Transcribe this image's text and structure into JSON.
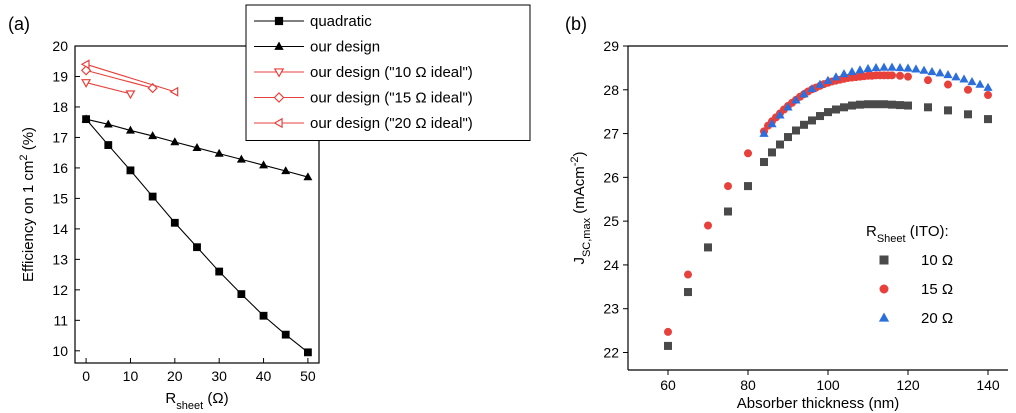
{
  "chart_data": [
    {
      "type": "line",
      "panel_label": "(a)",
      "xlabel": "R",
      "xlabel_sub": "sheet",
      "xlabel_unit": " (Ω)",
      "ylabel": "Efficiency on 1 cm",
      "ylabel_sup": "2",
      "ylabel_unit": " (%)",
      "xlim": [
        -2.5,
        52.5
      ],
      "ylim": [
        9.6,
        20.0
      ],
      "xticks": [
        0,
        10,
        20,
        30,
        40,
        50
      ],
      "yticks": [
        10,
        11,
        12,
        13,
        14,
        15,
        16,
        17,
        18,
        19,
        20
      ],
      "legend_position": "top-right",
      "series": [
        {
          "name": "quadratic",
          "color": "#000000",
          "marker": "square",
          "line": true,
          "x": [
            0,
            5,
            10,
            15,
            20,
            25,
            30,
            35,
            40,
            45,
            50
          ],
          "y": [
            17.6,
            16.75,
            15.92,
            15.06,
            14.2,
            13.4,
            12.6,
            11.86,
            11.15,
            10.53,
            9.95
          ]
        },
        {
          "name": "our design",
          "color": "#000000",
          "marker": "triangle-up",
          "line": true,
          "x": [
            0,
            5,
            10,
            15,
            20,
            25,
            30,
            35,
            40,
            45,
            50
          ],
          "y": [
            17.6,
            17.43,
            17.23,
            17.05,
            16.85,
            16.66,
            16.47,
            16.28,
            16.09,
            15.9,
            15.7
          ]
        },
        {
          "name": "our design (\"10 Ω ideal\")",
          "color": "#e8413c",
          "marker": "triangle-down-open",
          "line": true,
          "x": [
            0,
            10
          ],
          "y": [
            18.8,
            18.43
          ]
        },
        {
          "name": "our design (\"15 Ω ideal\")",
          "color": "#e8413c",
          "marker": "diamond-open",
          "line": true,
          "x": [
            0,
            15
          ],
          "y": [
            19.2,
            18.62
          ]
        },
        {
          "name": "our design (\"20 Ω ideal\")",
          "color": "#e8413c",
          "marker": "triangle-left-open",
          "line": true,
          "x": [
            0,
            20
          ],
          "y": [
            19.4,
            18.5
          ]
        }
      ]
    },
    {
      "type": "scatter",
      "panel_label": "(b)",
      "xlabel": "Absorber thickness (nm)",
      "ylabel": "J",
      "ylabel_sub": "SC,max",
      "ylabel_unit": " (mAcm",
      "ylabel_sup": "-2",
      "ylabel_close": ")",
      "xlim": [
        50,
        145
      ],
      "ylim": [
        21.6,
        29.0
      ],
      "xticks": [
        60,
        80,
        100,
        120,
        140
      ],
      "yticks": [
        22,
        23,
        24,
        25,
        26,
        27,
        28,
        29
      ],
      "legend_title": "R",
      "legend_title_sub": "Sheet",
      "legend_title_rest": " (ITO):",
      "legend_position": "lower-right",
      "series": [
        {
          "name": "10 Ω",
          "color": "#4a4a4a",
          "marker": "square",
          "x": [
            60,
            65,
            70,
            75,
            80,
            84,
            86,
            88,
            90,
            92,
            94,
            96,
            98,
            100,
            102,
            104,
            106,
            108,
            110,
            112,
            114,
            116,
            118,
            120,
            125,
            130,
            135,
            140
          ],
          "y": [
            22.15,
            23.38,
            24.4,
            25.22,
            25.8,
            26.35,
            26.57,
            26.75,
            26.92,
            27.07,
            27.2,
            27.3,
            27.4,
            27.49,
            27.55,
            27.6,
            27.64,
            27.66,
            27.67,
            27.67,
            27.67,
            27.66,
            27.65,
            27.64,
            27.6,
            27.53,
            27.44,
            27.33
          ]
        },
        {
          "name": "15 Ω",
          "color": "#e8413c",
          "marker": "circle",
          "x": [
            60,
            65,
            70,
            75,
            80,
            84,
            85,
            86,
            87,
            88,
            89,
            90,
            91,
            92,
            93,
            94,
            95,
            96,
            97,
            98,
            99,
            100,
            101,
            102,
            103,
            104,
            105,
            106,
            107,
            108,
            109,
            110,
            111,
            112,
            113,
            114,
            115,
            116,
            118,
            120,
            125,
            130,
            135,
            140
          ],
          "y": [
            22.47,
            23.78,
            24.9,
            25.8,
            26.55,
            27.05,
            27.18,
            27.28,
            27.37,
            27.46,
            27.55,
            27.63,
            27.7,
            27.77,
            27.84,
            27.9,
            27.96,
            28.01,
            28.05,
            28.09,
            28.13,
            28.16,
            28.19,
            28.21,
            28.23,
            28.25,
            28.27,
            28.28,
            28.29,
            28.3,
            28.31,
            28.32,
            28.32,
            28.33,
            28.33,
            28.33,
            28.33,
            28.33,
            28.32,
            28.3,
            28.22,
            28.12,
            28.0,
            27.88
          ]
        },
        {
          "name": "20 Ω",
          "color": "#2c6fdc",
          "marker": "triangle-up",
          "x": [
            84,
            86,
            88,
            90,
            92,
            94,
            96,
            98,
            100,
            102,
            104,
            106,
            108,
            110,
            112,
            114,
            116,
            118,
            120,
            122,
            124,
            126,
            128,
            130,
            132,
            134,
            136,
            138,
            140
          ],
          "y": [
            27.0,
            27.22,
            27.42,
            27.6,
            27.76,
            27.9,
            28.02,
            28.12,
            28.21,
            28.29,
            28.36,
            28.41,
            28.45,
            28.48,
            28.5,
            28.51,
            28.51,
            28.5,
            28.49,
            28.47,
            28.44,
            28.41,
            28.38,
            28.34,
            28.29,
            28.24,
            28.18,
            28.12,
            28.05
          ]
        }
      ]
    }
  ]
}
